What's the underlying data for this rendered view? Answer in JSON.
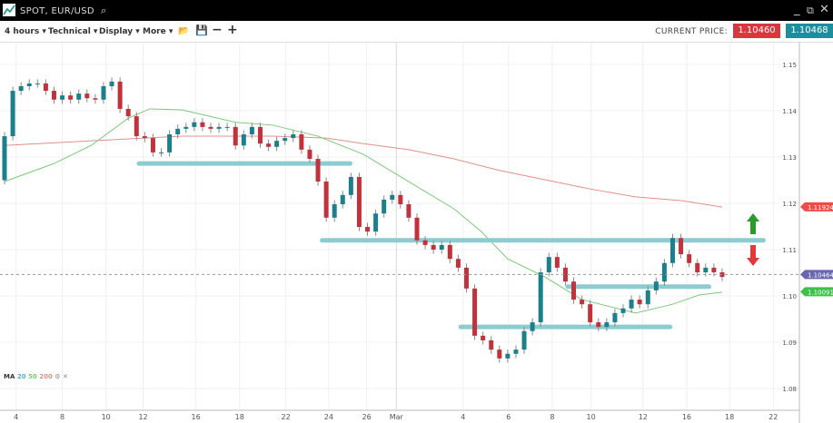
{
  "window": {
    "title": "SPOT, EUR/USD",
    "icons": [
      "chart-logo-icon",
      "search-icon",
      "minimize-icon",
      "popout-icon",
      "close-icon"
    ]
  },
  "toolbar": {
    "timeframe": "4 hours ▾",
    "technical": "Technical ▾",
    "display": "Display ▾",
    "more": "More ▾",
    "current_price_label": "CURRENT PRICE:",
    "bid": "1.10460",
    "ask": "1.10468",
    "bid_color": "#d9363e",
    "ask_color": "#1c8f9e"
  },
  "indicator": {
    "label": "MA",
    "p1": "20",
    "p2": "50",
    "p3": "200"
  },
  "chart_data": {
    "type": "candlestick",
    "symbol": "EUR/USD",
    "ylim": [
      1.077,
      1.157
    ],
    "y_ticks": [
      "1.15",
      "1.14",
      "1.13",
      "1.12",
      "1.11",
      "1.10",
      "1.09",
      "1.08"
    ],
    "y_tick_values": [
      1.15,
      1.14,
      1.13,
      1.12,
      1.11,
      1.1,
      1.09,
      1.08
    ],
    "x_ticks": [
      {
        "label": "4",
        "i": 1.4
      },
      {
        "label": "8",
        "i": 7
      },
      {
        "label": "10",
        "i": 12.3
      },
      {
        "label": "12",
        "i": 16.8
      },
      {
        "label": "16",
        "i": 23.2
      },
      {
        "label": "18",
        "i": 28.5
      },
      {
        "label": "22",
        "i": 34.1
      },
      {
        "label": "24",
        "i": 39.3
      },
      {
        "label": "26",
        "i": 43.9
      },
      {
        "label": "Mar",
        "i": 47.5
      },
      {
        "label": "4",
        "i": 55.6
      },
      {
        "label": "6",
        "i": 61.1
      },
      {
        "label": "8",
        "i": 66.4
      },
      {
        "label": "10",
        "i": 71.1
      },
      {
        "label": "12",
        "i": 77.4
      },
      {
        "label": "16",
        "i": 82.7
      },
      {
        "label": "18",
        "i": 87.9
      },
      {
        "label": "22",
        "i": 93.2
      }
    ],
    "start_open": 1.125,
    "closes": [
      1.1345,
      1.1443,
      1.1453,
      1.1459,
      1.1459,
      1.1443,
      1.1424,
      1.1433,
      1.1424,
      1.1437,
      1.1427,
      1.1424,
      1.1453,
      1.1463,
      1.1404,
      1.1388,
      1.1345,
      1.1341,
      1.131,
      1.131,
      1.1349,
      1.1361,
      1.1365,
      1.1375,
      1.1365,
      1.1361,
      1.1365,
      1.1365,
      1.1325,
      1.1349,
      1.1365,
      1.1329,
      1.1322,
      1.1335,
      1.1341,
      1.1349,
      1.1316,
      1.1296,
      1.1247,
      1.1169,
      1.1198,
      1.1218,
      1.1257,
      1.1149,
      1.1139,
      1.1178,
      1.1208,
      1.1218,
      1.1198,
      1.1169,
      1.112,
      1.111,
      1.11,
      1.111,
      1.108,
      1.1061,
      1.1016,
      1.0914,
      1.0904,
      1.0884,
      1.0865,
      1.0875,
      1.0884,
      1.0924,
      1.0943,
      1.1051,
      1.1084,
      1.1061,
      1.1031,
      1.0992,
      1.0982,
      1.0943,
      1.0933,
      1.0943,
      1.0963,
      1.0973,
      1.0992,
      1.0982,
      1.1012,
      1.1031,
      1.1071,
      1.1125,
      1.109,
      1.1071,
      1.1051,
      1.1061,
      1.1051,
      1.1041
    ],
    "up_color": "#1c7f8c",
    "down_color": "#c0323c",
    "ma50": {
      "color": "#7cc87a",
      "points": [
        [
          0,
          1.1247
        ],
        [
          6,
          1.1286
        ],
        [
          10.5,
          1.1325
        ],
        [
          15,
          1.1384
        ],
        [
          17.6,
          1.1404
        ],
        [
          21.5,
          1.1402
        ],
        [
          28,
          1.1375
        ],
        [
          32.5,
          1.1369
        ],
        [
          38,
          1.1345
        ],
        [
          43.5,
          1.1306
        ],
        [
          49,
          1.1247
        ],
        [
          54.5,
          1.1188
        ],
        [
          57.8,
          1.1139
        ],
        [
          61,
          1.108
        ],
        [
          65.5,
          1.1041
        ],
        [
          70,
          1.0992
        ],
        [
          76.5,
          1.0963
        ],
        [
          81,
          1.0982
        ],
        [
          84.2,
          1.1002
        ],
        [
          87,
          1.1008
        ]
      ]
    },
    "ma200": {
      "color": "#e0908a",
      "points": [
        [
          0,
          1.1325
        ],
        [
          10.5,
          1.1335
        ],
        [
          21.5,
          1.1345
        ],
        [
          32.5,
          1.1345
        ],
        [
          39,
          1.1341
        ],
        [
          43.5,
          1.1329
        ],
        [
          49,
          1.1316
        ],
        [
          54.5,
          1.1296
        ],
        [
          60,
          1.1271
        ],
        [
          65.5,
          1.1251
        ],
        [
          71,
          1.1231
        ],
        [
          76.5,
          1.1214
        ],
        [
          82,
          1.1206
        ],
        [
          87,
          1.1192
        ]
      ]
    },
    "levels": [
      {
        "price": 1.1286,
        "from": 16.3,
        "to": 41.9
      },
      {
        "price": 1.112,
        "from": 38.5,
        "to": 92
      },
      {
        "price": 1.102,
        "from": 68.3,
        "to": 85.4
      },
      {
        "price": 1.0933,
        "from": 55.3,
        "to": 80.7
      }
    ],
    "level_color": "#8ccbd0",
    "current_price": 1.10464,
    "price_labels": [
      {
        "text": "1.11924",
        "price": 1.11924,
        "color": "#ef4b4b"
      },
      {
        "text": "1.10464",
        "price": 1.10464,
        "color": "#6a65b0"
      },
      {
        "text": "1.10091",
        "price": 1.10091,
        "color": "#3cc04a"
      }
    ],
    "arrows": [
      {
        "dir": "up",
        "color": "#2a9a2a"
      },
      {
        "dir": "down",
        "color": "#e03a3a"
      }
    ]
  }
}
